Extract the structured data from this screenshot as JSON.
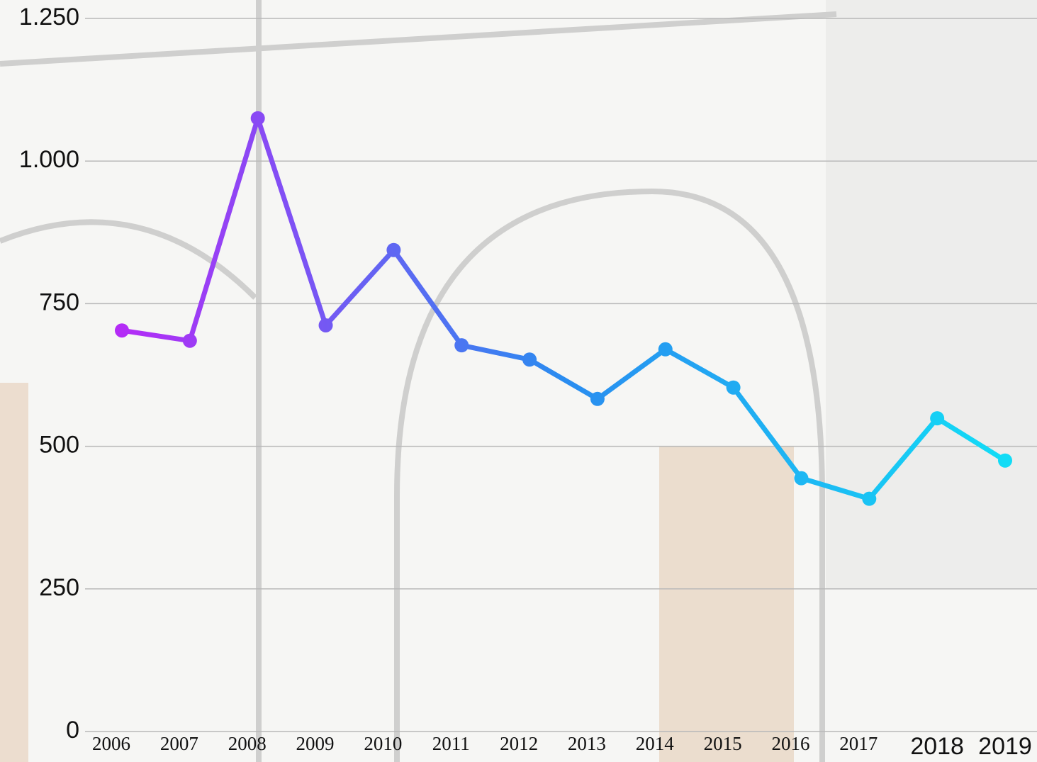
{
  "chart_data": {
    "type": "line",
    "categories": [
      "2006",
      "2007",
      "2008",
      "2009",
      "2010",
      "2011",
      "2012",
      "2013",
      "2014",
      "2015",
      "2016",
      "2017",
      "2018",
      "2019"
    ],
    "series": [
      {
        "color": [
          "#b42cf6",
          "#2a8cf0",
          "#12dcf6"
        ],
        "values": [
          703,
          685,
          1075,
          712,
          844,
          677,
          652,
          583,
          670,
          603,
          444,
          408,
          549,
          475
        ]
      }
    ],
    "ylim": [
      0,
      1250
    ],
    "yticks": [
      0,
      250,
      500,
      750,
      {
        "value": 1000,
        "label": "1.000"
      },
      {
        "value": 1250,
        "label": "1.250"
      }
    ],
    "grid": true
  }
}
